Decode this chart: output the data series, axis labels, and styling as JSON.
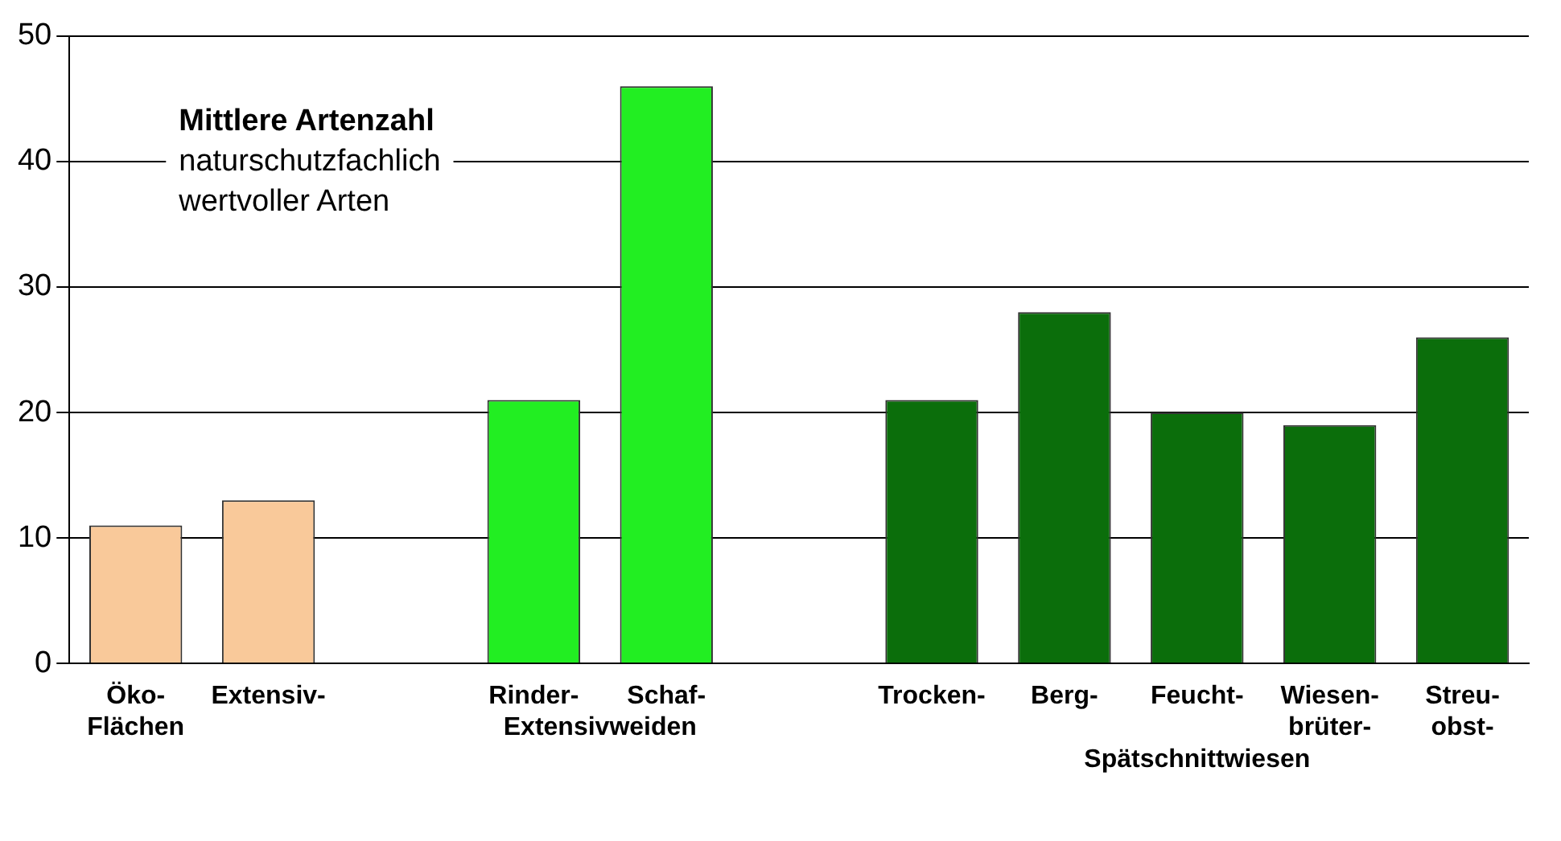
{
  "chart_data": {
    "type": "bar",
    "title": "Mittlere Artenzahl",
    "subtitle": "naturschutzfachlich\nwertvoller Arten",
    "categories": [
      "Öko-\nFlächen",
      "Extensiv-",
      null,
      "Rinder-",
      "Schaf-",
      null,
      "Trocken-",
      "Berg-",
      "Feucht-",
      "Wiesen-\nbrüter-",
      "Streu-\nobst-"
    ],
    "values": [
      11,
      13,
      null,
      21,
      46,
      null,
      21,
      28,
      20,
      19,
      26
    ],
    "colors": [
      "#f9c99a",
      "#f9c99a",
      "#f9c99a",
      "#22ee22",
      "#22ee22",
      "#22ee22",
      "#0b6e0b",
      "#0b6e0b",
      "#0b6e0b",
      "#0b6e0b",
      "#0b6e0b"
    ],
    "annotations": [
      "Extensivweiden",
      "Spätschnittwiesen"
    ],
    "ylim": [
      0,
      50
    ],
    "yticks": [
      0,
      10,
      20,
      30,
      40,
      50
    ],
    "grid": "y",
    "legend": false
  }
}
